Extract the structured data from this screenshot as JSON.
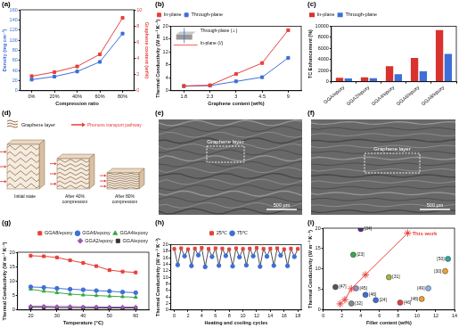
{
  "chart_data": [
    {
      "type": "line",
      "title": "(a)",
      "categories": [
        "0%",
        "20%",
        "40%",
        "60%",
        "80%"
      ],
      "x_label": "Compression ratio",
      "y_label": "Density (mg cm⁻³)",
      "y2_label": "Graphene content (wt%)",
      "ylim": [
        0,
        160
      ],
      "yticks": [
        0,
        20,
        40,
        60,
        80,
        100,
        120,
        140,
        160
      ],
      "y2lim": [
        0,
        10
      ],
      "y2ticks": [
        0,
        2,
        4,
        6,
        8,
        10
      ],
      "grid": false,
      "series": [
        {
          "color": "#3d6fd6",
          "values": [
            22,
            28,
            38,
            57,
            113
          ],
          "marker": "square"
        },
        {
          "color": "#e8413a",
          "values": [
            1.8,
            2.3,
            3,
            4.5,
            9
          ],
          "marker": "square",
          "axis": "y2"
        }
      ]
    },
    {
      "type": "line",
      "title": "(b)",
      "categories": [
        "1.8",
        "2.3",
        "3",
        "4.5",
        "9"
      ],
      "x_label": "Graphene content (wt%)",
      "y_label": "Thermal Conductivity (W m⁻¹ K⁻¹)",
      "ylim": [
        0,
        20
      ],
      "yticks": [
        0,
        4,
        8,
        12,
        16,
        20
      ],
      "grid": false,
      "legend": "upper left",
      "annotations": [
        "Through-plane (⊥)",
        "In-plane (//)"
      ],
      "series": [
        {
          "name": "In-plane",
          "color": "#e8413a",
          "values": [
            1.5,
            1.7,
            5.2,
            8.6,
            18.8
          ],
          "marker": "square"
        },
        {
          "name": "Through-plane",
          "color": "#3d6fd6",
          "values": [
            1.4,
            1.6,
            2.9,
            4.2,
            10.2
          ],
          "marker": "square"
        }
      ]
    },
    {
      "type": "bar",
      "title": "(c)",
      "categories": [
        "GGA/epoxy",
        "GGA2/epoxy",
        "GGA4/epoxy",
        "GGA6/epoxy",
        "GGA8/epoxy"
      ],
      "y_label": "TC Enhancement (%)",
      "ylim": [
        0,
        10000
      ],
      "yticks": [
        0,
        2000,
        4000,
        6000,
        8000,
        10000
      ],
      "grid": false,
      "legend": "upper left",
      "series": [
        {
          "name": "In-plane",
          "color": "#d9322e",
          "values": [
            700,
            800,
            2800,
            4300,
            9300
          ]
        },
        {
          "name": "Through-plane",
          "color": "#3d6fd6",
          "values": [
            600,
            650,
            1350,
            1900,
            5000
          ]
        }
      ]
    },
    {
      "type": "line",
      "title": "(g)",
      "x_label": "Temperature (℃)",
      "y_label": "Thermal Conductivity (W m⁻¹ K⁻¹)",
      "xlim": [
        15,
        65
      ],
      "xticks": [
        20,
        30,
        40,
        50,
        60
      ],
      "ylim": [
        0,
        20
      ],
      "yticks": [
        0,
        5,
        10,
        15,
        20
      ],
      "grid": false,
      "legend": "upper right",
      "series": [
        {
          "name": "GGA8/epoxy",
          "color": "#e8413a",
          "marker": "square",
          "x": [
            20,
            25,
            30,
            35,
            40,
            45,
            50,
            55,
            60
          ],
          "values": [
            18.8,
            18.6,
            18.2,
            17.2,
            16.3,
            15.2,
            13.8,
            13.3,
            13.0
          ]
        },
        {
          "name": "GGA6/epoxy",
          "color": "#3d6fd6",
          "marker": "circle",
          "x": [
            20,
            25,
            30,
            35,
            40,
            45,
            50,
            55,
            60
          ],
          "values": [
            8.0,
            7.8,
            7.5,
            7.2,
            7.0,
            6.7,
            6.5,
            6.2,
            6.0
          ]
        },
        {
          "name": "GGA4/epoxy",
          "color": "#3aa845",
          "marker": "triangle",
          "x": [
            20,
            25,
            30,
            35,
            40,
            45,
            50,
            55,
            60
          ],
          "values": [
            7.2,
            6.5,
            6.0,
            5.5,
            5.2,
            5.0,
            4.8,
            4.6,
            4.4
          ]
        },
        {
          "name": "GGA2/epoxy",
          "color": "#9b59b6",
          "marker": "diamond",
          "x": [
            20,
            25,
            30,
            35,
            40,
            45,
            50,
            55,
            60
          ],
          "values": [
            1.3,
            1.3,
            1.2,
            1.2,
            1.1,
            1.1,
            1.0,
            1.0,
            1.0
          ]
        },
        {
          "name": "GGA/epoxy",
          "color": "#333333",
          "marker": "square",
          "x": [
            20,
            25,
            30,
            35,
            40,
            45,
            50,
            55,
            60
          ],
          "values": [
            0.9,
            0.9,
            0.8,
            0.8,
            0.8,
            0.7,
            0.7,
            0.7,
            0.7
          ]
        }
      ]
    },
    {
      "type": "scatter",
      "title": "(h)",
      "x_label": "Heating and cooling cycles",
      "y_label": "Thermal Conductivity (W m⁻¹ K⁻¹)",
      "xlim": [
        -0.5,
        18.5
      ],
      "xticks": [
        0,
        2,
        4,
        6,
        8,
        10,
        12,
        14,
        16,
        18
      ],
      "ylim": [
        0,
        20
      ],
      "yticks": [
        0,
        2,
        4,
        6,
        8,
        10,
        12,
        14,
        16,
        18,
        20
      ],
      "grid": false,
      "legend": "upper center",
      "color": "#222222",
      "line_style": "solid",
      "series": [
        {
          "name": "25℃",
          "color": "#e8413a",
          "marker": "square",
          "line_style": "none",
          "x": [
            0,
            1,
            2,
            3,
            4,
            5,
            6,
            7,
            8,
            9,
            10,
            11,
            12,
            13,
            14,
            15,
            16,
            17,
            18
          ],
          "values": [
            18.7,
            18.9,
            18.6,
            18.8,
            19.0,
            18.7,
            18.9,
            18.8,
            18.6,
            18.9,
            18.7,
            18.8,
            19.0,
            18.7,
            18.8,
            18.9,
            18.6,
            18.8,
            18.7
          ]
        },
        {
          "name": "75℃",
          "color": "#3d6fd6",
          "marker": "circle",
          "line_style": "none",
          "x": [
            0.5,
            1.5,
            2.5,
            3.5,
            4.5,
            5.5,
            6.5,
            7.5,
            8.5,
            9.5,
            10.5,
            11.5,
            12.5,
            13.5,
            14.5,
            15.5,
            16.5,
            17.5
          ],
          "values": [
            13.8,
            16.5,
            13.5,
            16.8,
            13.2,
            16.3,
            13.6,
            16.6,
            13.4,
            16.2,
            13.7,
            16.5,
            13.3,
            16.4,
            13.6,
            16.7,
            13.5,
            16.3
          ]
        }
      ]
    },
    {
      "type": "scatter",
      "title": "(i)",
      "x_label": "Filler content (wt%)",
      "y_label": "Thermal Conductivity (W m⁻¹ K⁻¹)",
      "xlim": [
        0,
        14
      ],
      "xticks": [
        0,
        2,
        4,
        6,
        8,
        10,
        12,
        14
      ],
      "ylim": [
        0,
        20
      ],
      "yticks": [
        0,
        5,
        10,
        15,
        20
      ],
      "grid": false,
      "series": [
        {
          "name": "This work",
          "color": "#e8413a",
          "marker": "star",
          "line_style": "solid",
          "x": [
            1.8,
            2.3,
            3,
            4.5,
            9
          ],
          "values": [
            1.5,
            2.5,
            5.2,
            8.6,
            18.8
          ]
        },
        {
          "marker": "circle",
          "line_style": "none",
          "labels": [
            "[34]",
            "[23]",
            "[50]",
            "[30]",
            "[31]",
            "[49]",
            "[47]",
            "[45]",
            "[46]",
            "[32]",
            "[24]",
            "[46]",
            "[48]"
          ],
          "x": [
            4.0,
            3.2,
            13.3,
            13.0,
            7.0,
            11.2,
            1.3,
            3.5,
            4.5,
            3.0,
            5.6,
            8.2,
            10.5
          ],
          "values": [
            19.8,
            13.5,
            12.5,
            9.5,
            8.0,
            5.3,
            5.6,
            5.3,
            3.7,
            1.6,
            2.4,
            1.8,
            2.7
          ],
          "colors": [
            "#5b2a8c",
            "#3aa845",
            "#2fa7a0",
            "#f0a030",
            "#a8b43a",
            "#8fb0e8",
            "#555555",
            "#9090d0",
            "#3d6fd6",
            "#888888",
            "#3d6fd6",
            "#e8413a",
            "#f0a030"
          ]
        }
      ]
    }
  ],
  "diagram": {
    "title": "(d)",
    "legend": "Graphene layer",
    "arrow_label": "Phonons transport pathway",
    "stages": [
      "Initial state",
      "After 40% compression",
      "After 80% compression"
    ]
  },
  "images": [
    {
      "title": "(e)",
      "label": "Graphene layer",
      "scale_bar": "500 μm"
    },
    {
      "title": "(f)",
      "label": "Graphene layer",
      "scale_bar": "500 μm"
    }
  ]
}
